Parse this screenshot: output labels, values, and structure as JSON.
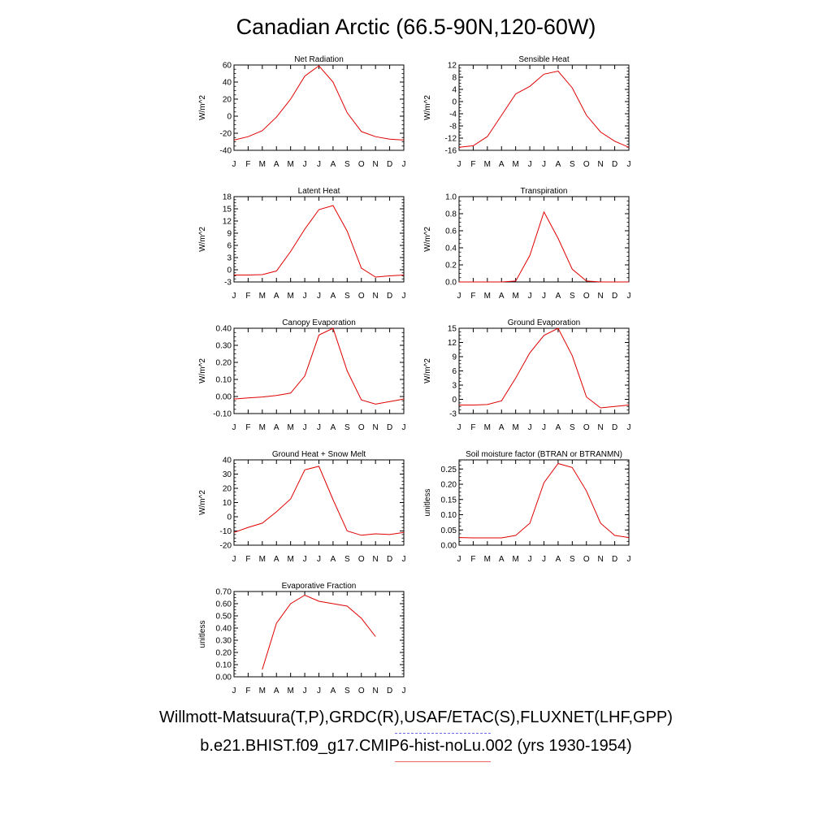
{
  "title": "Canadian Arctic (66.5-90N,120-60W)",
  "legend": {
    "obs_label": "Willmott-Matsuura(T,P),GRDC(R),USAF/ETAC(S),FLUXNET(LHF,GPP)",
    "model_label": "b.e21.BHIST.f09_g17.CMIP6-hist-noLu.002 (yrs 1930-1954)",
    "obs_color": "#6a6aee",
    "model_color": "#ee6a6a"
  },
  "line_color": "#e00000",
  "chart_data": [
    {
      "type": "line",
      "title": "Net Radiation",
      "ylabel": "W/m^2",
      "x": [
        "J",
        "F",
        "M",
        "A",
        "M",
        "J",
        "J",
        "A",
        "S",
        "O",
        "N",
        "D",
        "J"
      ],
      "ylim": [
        -40,
        60
      ],
      "yticks": [
        "-40",
        "-20",
        "0",
        "20",
        "40",
        "60"
      ],
      "ytick_values": [
        -40,
        -20,
        0,
        20,
        40,
        60
      ],
      "values": [
        -28,
        -24,
        -17,
        -1,
        20,
        47,
        59,
        40,
        4,
        -18,
        -24,
        -27,
        -28
      ]
    },
    {
      "type": "line",
      "title": "Sensible Heat",
      "ylabel": "W/m^2",
      "x": [
        "J",
        "F",
        "M",
        "A",
        "M",
        "J",
        "J",
        "A",
        "S",
        "O",
        "N",
        "D",
        "J"
      ],
      "ylim": [
        -16,
        12
      ],
      "yticks": [
        "-16",
        "-12",
        "-8",
        "-4",
        "0",
        "4",
        "8",
        "12"
      ],
      "ytick_values": [
        -16,
        -12,
        -8,
        -4,
        0,
        4,
        8,
        12
      ],
      "values": [
        -15,
        -14.5,
        -11.5,
        -4.5,
        2.5,
        5,
        9,
        10,
        4.5,
        -4.5,
        -10,
        -13,
        -15
      ]
    },
    {
      "type": "line",
      "title": "Latent Heat",
      "ylabel": "W/m^2",
      "x": [
        "J",
        "F",
        "M",
        "A",
        "M",
        "J",
        "J",
        "A",
        "S",
        "O",
        "N",
        "D",
        "J"
      ],
      "ylim": [
        -3,
        18
      ],
      "yticks": [
        "-3",
        "0",
        "3",
        "6",
        "9",
        "12",
        "15",
        "18"
      ],
      "ytick_values": [
        -3,
        0,
        3,
        6,
        9,
        12,
        15,
        18
      ],
      "values": [
        -1.3,
        -1.3,
        -1.2,
        -0.3,
        4.5,
        10,
        14.8,
        15.8,
        9.5,
        0.4,
        -1.8,
        -1.5,
        -1.3
      ]
    },
    {
      "type": "line",
      "title": "Transpiration",
      "ylabel": "W/m^2",
      "x": [
        "J",
        "F",
        "M",
        "A",
        "M",
        "J",
        "J",
        "A",
        "S",
        "O",
        "N",
        "D",
        "J"
      ],
      "ylim": [
        0,
        1.0
      ],
      "yticks": [
        "0.0",
        "0.2",
        "0.4",
        "0.6",
        "0.8",
        "1.0"
      ],
      "ytick_values": [
        0,
        0.2,
        0.4,
        0.6,
        0.8,
        1.0
      ],
      "values": [
        0,
        0,
        0,
        0,
        0.01,
        0.31,
        0.82,
        0.51,
        0.15,
        0.01,
        0,
        0,
        0
      ]
    },
    {
      "type": "line",
      "title": "Canopy Evaporation",
      "ylabel": "W/m^2",
      "x": [
        "J",
        "F",
        "M",
        "A",
        "M",
        "J",
        "J",
        "A",
        "S",
        "O",
        "N",
        "D",
        "J"
      ],
      "ylim": [
        -0.1,
        0.4
      ],
      "yticks": [
        "-0.10",
        "0.00",
        "0.10",
        "0.20",
        "0.30",
        "0.40"
      ],
      "ytick_values": [
        -0.1,
        0,
        0.1,
        0.2,
        0.3,
        0.4
      ],
      "values": [
        -0.015,
        -0.008,
        -0.003,
        0.006,
        0.02,
        0.12,
        0.36,
        0.4,
        0.15,
        -0.02,
        -0.045,
        -0.03,
        -0.015
      ]
    },
    {
      "type": "line",
      "title": "Ground Evaporation",
      "ylabel": "W/m^2",
      "x": [
        "J",
        "F",
        "M",
        "A",
        "M",
        "J",
        "J",
        "A",
        "S",
        "O",
        "N",
        "D",
        "J"
      ],
      "ylim": [
        -3,
        15
      ],
      "yticks": [
        "-3",
        "0",
        "3",
        "6",
        "9",
        "12",
        "15"
      ],
      "ytick_values": [
        -3,
        0,
        3,
        6,
        9,
        12,
        15
      ],
      "values": [
        -1.2,
        -1.2,
        -1.1,
        -0.3,
        4.5,
        9.8,
        13.5,
        15,
        9.2,
        0.5,
        -1.8,
        -1.5,
        -1.2
      ]
    },
    {
      "type": "line",
      "title": "Ground Heat + Snow Melt",
      "ylabel": "W/m^2",
      "x": [
        "J",
        "F",
        "M",
        "A",
        "M",
        "J",
        "J",
        "A",
        "S",
        "O",
        "N",
        "D",
        "J"
      ],
      "ylim": [
        -20,
        40
      ],
      "yticks": [
        "-20",
        "-10",
        "0",
        "10",
        "20",
        "30",
        "40"
      ],
      "ytick_values": [
        -20,
        -10,
        0,
        10,
        20,
        30,
        40
      ],
      "values": [
        -11,
        -7.5,
        -4.5,
        3.5,
        12.5,
        33,
        35.5,
        12,
        -10,
        -13,
        -12,
        -12.5,
        -11
      ]
    },
    {
      "type": "line",
      "title": "Soil moisture factor (BTRAN or BTRANMN)",
      "ylabel": "unitless",
      "x": [
        "J",
        "F",
        "M",
        "A",
        "M",
        "J",
        "J",
        "A",
        "S",
        "O",
        "N",
        "D",
        "J"
      ],
      "ylim": [
        0,
        0.28
      ],
      "yticks": [
        "0.00",
        "0.05",
        "0.10",
        "0.15",
        "0.20",
        "0.25"
      ],
      "ytick_values": [
        0,
        0.05,
        0.1,
        0.15,
        0.2,
        0.25
      ],
      "values": [
        0.025,
        0.024,
        0.024,
        0.024,
        0.032,
        0.072,
        0.205,
        0.268,
        0.255,
        0.178,
        0.072,
        0.032,
        0.025
      ]
    },
    {
      "type": "line",
      "title": "Evaporative Fraction",
      "ylabel": "unitless",
      "x": [
        "J",
        "F",
        "M",
        "A",
        "M",
        "J",
        "J",
        "A",
        "S",
        "O",
        "N",
        "D",
        "J"
      ],
      "ylim": [
        0,
        0.7
      ],
      "yticks": [
        "0.00",
        "0.10",
        "0.20",
        "0.30",
        "0.40",
        "0.50",
        "0.60",
        "0.70"
      ],
      "ytick_values": [
        0,
        0.1,
        0.2,
        0.3,
        0.4,
        0.5,
        0.6,
        0.7
      ],
      "values": [
        null,
        null,
        0.06,
        0.44,
        0.6,
        0.67,
        0.62,
        0.6,
        0.58,
        0.48,
        0.33,
        null,
        null
      ]
    }
  ]
}
